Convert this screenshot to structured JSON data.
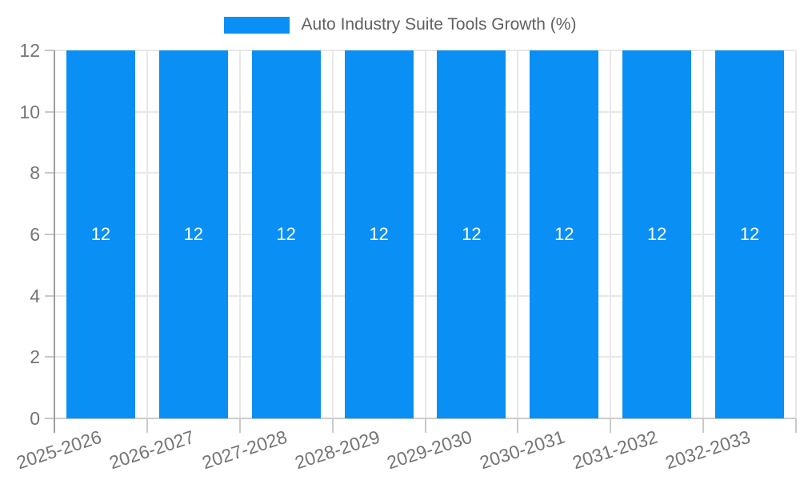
{
  "chart_data": {
    "type": "bar",
    "title": "Auto Industry Suite Tools Growth (%)",
    "legend": {
      "label": "Auto Industry Suite Tools Growth (%)",
      "position": "top-center"
    },
    "categories": [
      "2025-2026",
      "2026-2027",
      "2027-2028",
      "2028-2029",
      "2029-2030",
      "2030-2031",
      "2031-2032",
      "2032-2033"
    ],
    "series": [
      {
        "name": "Auto Industry Suite Tools Growth (%)",
        "values": [
          12,
          12,
          12,
          12,
          12,
          12,
          12,
          12
        ]
      }
    ],
    "bar_value_labels": [
      "12",
      "12",
      "12",
      "12",
      "12",
      "12",
      "12",
      "12"
    ],
    "xlabel": "",
    "ylabel": "",
    "ylim": [
      0,
      12
    ],
    "yticks": [
      0,
      2,
      4,
      6,
      8,
      10,
      12
    ],
    "grid": true,
    "x_label_rotation_deg": -18,
    "colors": {
      "bar": "#0A8FF5",
      "bar_label": "#FFFFFF",
      "grid": "#E8E8E8",
      "y_axis_line": "#9E9E9E",
      "x_axis_line": "#CCCCCC",
      "tick_mark": "#C9C9C9",
      "tick_label": "#757575",
      "legend_text": "#616161",
      "background": "#FFFFFF"
    }
  }
}
